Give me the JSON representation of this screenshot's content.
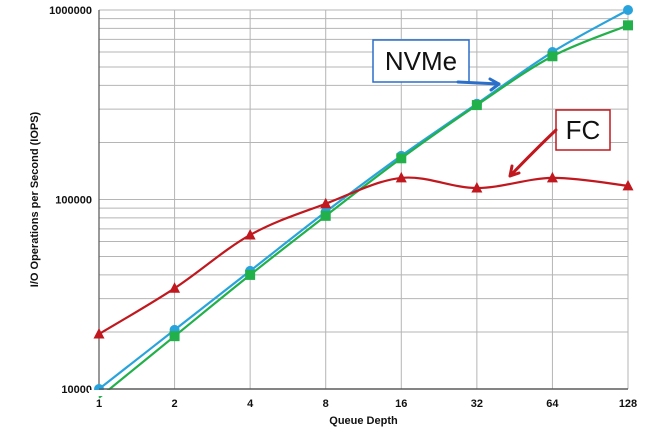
{
  "chart_data": {
    "type": "line",
    "xlabel": "Queue Depth",
    "ylabel": "I/O Operations per Second (IOPS)",
    "x": [
      1,
      2,
      4,
      8,
      16,
      32,
      64,
      128
    ],
    "x_tick_labels": [
      "1",
      "2",
      "4",
      "8",
      "16",
      "32",
      "64",
      "128"
    ],
    "y_scale": "log",
    "ylim": [
      10000,
      1000000
    ],
    "y_tick_labels": [
      "10000",
      "100000",
      "1000000"
    ],
    "grid": true,
    "series": [
      {
        "values": [
          10000,
          20500,
          42000,
          86000,
          170000,
          320000,
          600000,
          1000000
        ],
        "color": "#29a3dc",
        "marker": "circle"
      },
      {
        "values": [
          9000,
          19000,
          40000,
          82000,
          165000,
          315000,
          570000,
          830000
        ],
        "color": "#22b04a",
        "marker": "square"
      },
      {
        "values": [
          19500,
          34000,
          65000,
          95000,
          130000,
          115000,
          130000,
          118000
        ],
        "color": "#c0181e",
        "marker": "triangle"
      }
    ],
    "annotations": [
      {
        "text": "NVMe",
        "box_color": "#2a6fc9",
        "arrow_color": "#2a6fc9"
      },
      {
        "text": "FC",
        "box_color": "#c0181e",
        "arrow_color": "#c0181e"
      }
    ]
  }
}
